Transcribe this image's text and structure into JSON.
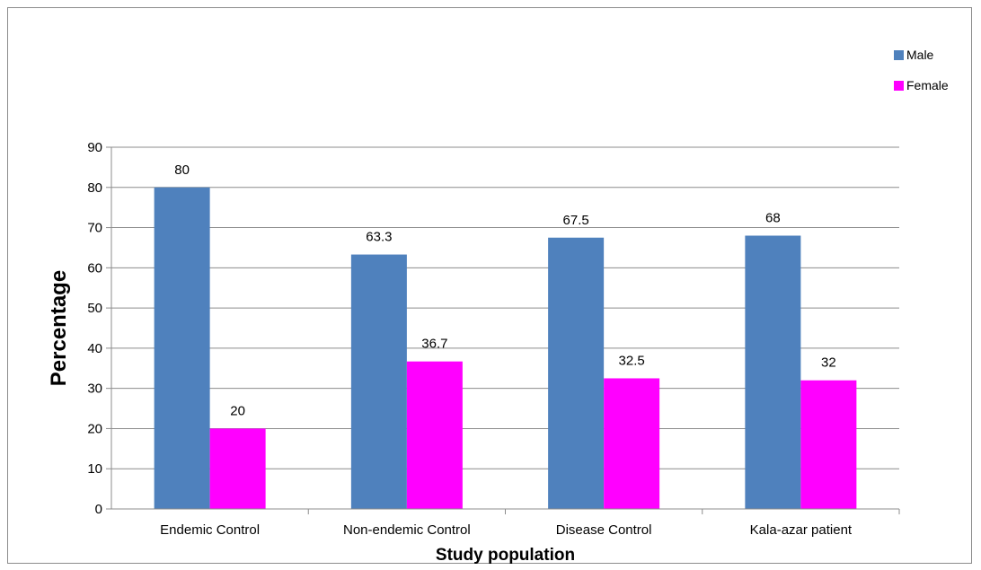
{
  "chart_data": {
    "type": "bar",
    "categories": [
      "Endemic Control",
      "Non-endemic Control",
      "Disease Control",
      "Kala-azar patient"
    ],
    "series": [
      {
        "name": "Male",
        "values": [
          80,
          63.3,
          67.5,
          68
        ],
        "color": "#4f81bd"
      },
      {
        "name": "Female",
        "values": [
          20,
          36.7,
          32.5,
          32
        ],
        "color": "#ff00ff"
      }
    ],
    "data_labels": [
      [
        "80",
        "63.3",
        "67.5",
        "68"
      ],
      [
        "20",
        "36.7",
        "32.5",
        "32"
      ]
    ],
    "xlabel": "Study population",
    "ylabel": "Percentage",
    "ylim": [
      0,
      90
    ],
    "yticks": [
      0,
      10,
      20,
      30,
      40,
      50,
      60,
      70,
      80,
      90
    ],
    "ytick_labels": [
      "0",
      "10",
      "20",
      "30",
      "40",
      "50",
      "60",
      "70",
      "80",
      "90"
    ],
    "grid": true,
    "legend": "top-right"
  }
}
